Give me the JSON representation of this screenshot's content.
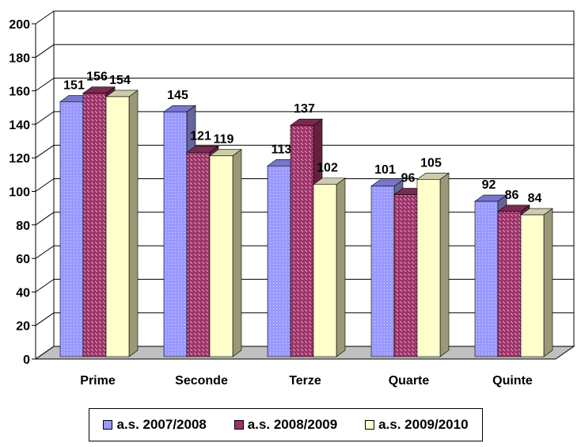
{
  "chart_data": {
    "type": "bar",
    "style": "3d-clustered",
    "categories": [
      "Prime",
      "Seconde",
      "Terze",
      "Quarte",
      "Quinte"
    ],
    "series": [
      {
        "name": "a.s. 2007/2008",
        "values": [
          151,
          145,
          113,
          101,
          92
        ],
        "color": "#9999ff"
      },
      {
        "name": "a.s. 2008/2009",
        "values": [
          156,
          121,
          137,
          96,
          86
        ],
        "color": "#993366"
      },
      {
        "name": "a.s. 2009/2010",
        "values": [
          154,
          119,
          102,
          105,
          84
        ],
        "color": "#ffffcc"
      }
    ],
    "ylim": [
      0,
      200
    ],
    "yticks": [
      0,
      20,
      40,
      60,
      80,
      100,
      120,
      140,
      160,
      180,
      200
    ],
    "grid": true,
    "data_labels": true,
    "legend": "bottom"
  }
}
